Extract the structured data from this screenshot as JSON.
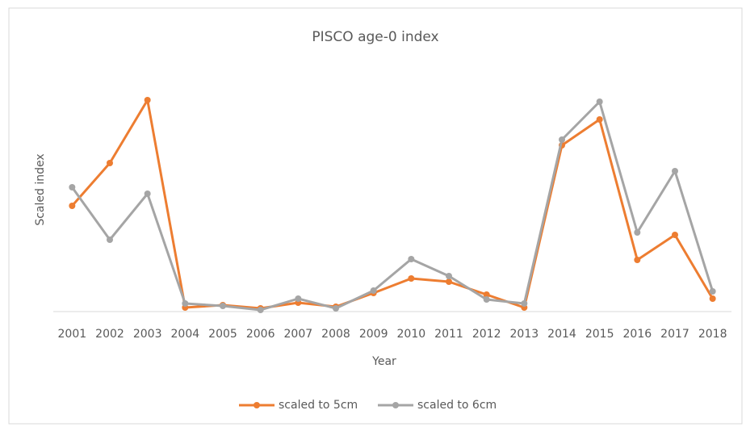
{
  "chart_data": {
    "type": "line",
    "title": "PISCO age-0 index",
    "x_label": "Year",
    "y_label": "Scaled index",
    "categories": [
      "2001",
      "2002",
      "2003",
      "2004",
      "2005",
      "2006",
      "2007",
      "2008",
      "2009",
      "2010",
      "2011",
      "2012",
      "2013",
      "2014",
      "2015",
      "2016",
      "2017",
      "2018"
    ],
    "series": [
      {
        "name": "scaled to 5cm",
        "color": "#ed7d31",
        "values": [
          1.31,
          1.84,
          2.62,
          0.05,
          0.08,
          0.04,
          0.11,
          0.06,
          0.23,
          0.41,
          0.37,
          0.21,
          0.05,
          2.06,
          2.38,
          0.64,
          0.95,
          0.16
        ]
      },
      {
        "name": "scaled to 6cm",
        "color": "#a5a5a5",
        "values": [
          1.54,
          0.89,
          1.46,
          0.1,
          0.07,
          0.02,
          0.16,
          0.04,
          0.26,
          0.65,
          0.44,
          0.15,
          0.1,
          2.13,
          2.6,
          0.98,
          1.74,
          0.25
        ]
      }
    ],
    "ylim": [
      0,
      2.86
    ],
    "legend": "bottom"
  }
}
